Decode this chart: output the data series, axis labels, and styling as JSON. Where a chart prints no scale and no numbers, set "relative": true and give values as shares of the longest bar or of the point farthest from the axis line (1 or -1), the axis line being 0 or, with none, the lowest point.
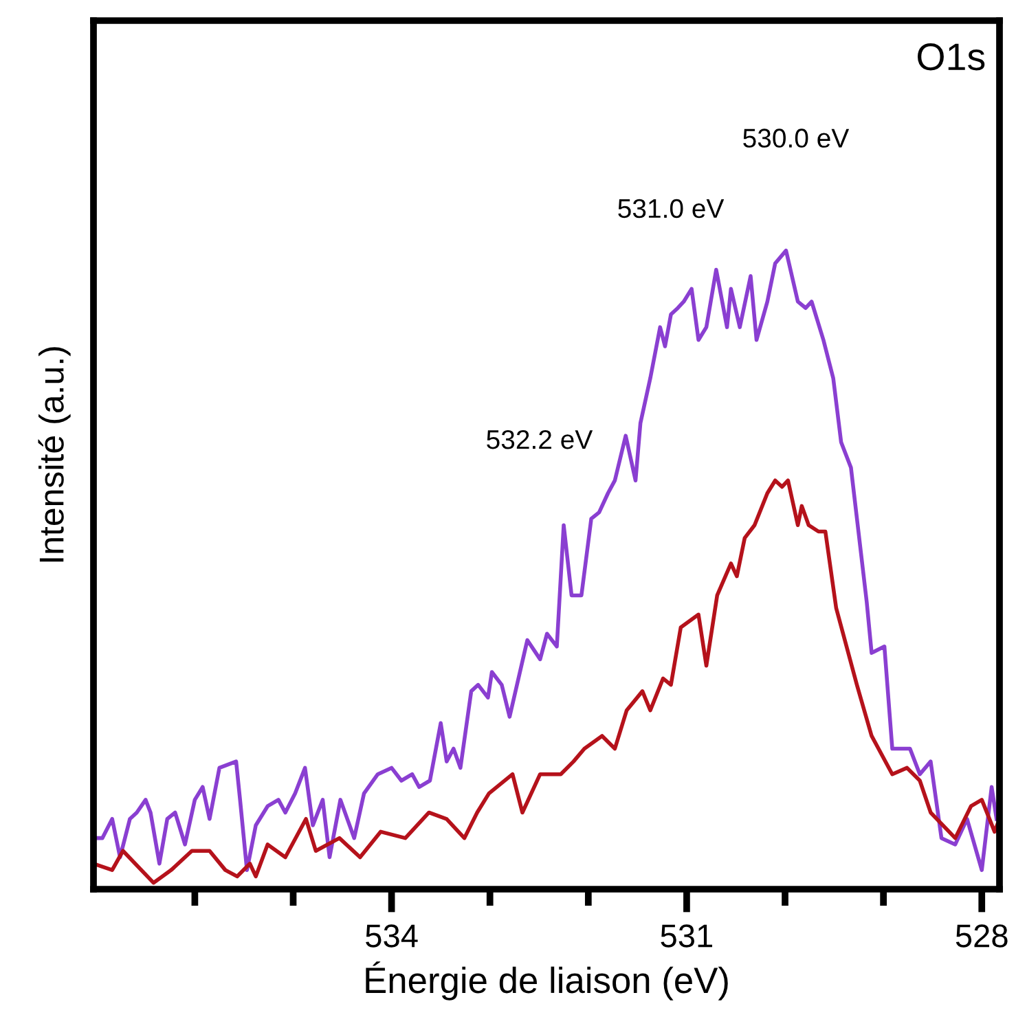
{
  "chart_data": {
    "type": "line",
    "relative": true,
    "xlabel": "Énergie de liaison (eV)",
    "ylabel": "Intensité (a.u.)",
    "xlim": [
      537.03,
      527.82
    ],
    "xticks": [
      {
        "value": 536,
        "label": null
      },
      {
        "value": 535,
        "label": null
      },
      534,
      {
        "value": 533,
        "label": null
      },
      {
        "value": 532,
        "label": null
      },
      531,
      {
        "value": 530,
        "label": null
      },
      {
        "value": 529,
        "label": null
      },
      528
    ],
    "grid": false,
    "legend": false,
    "marker": "none",
    "line_style": "solid",
    "annotations": [
      "O1s",
      "530.0 eV",
      "531.0 eV",
      "532.2 eV"
    ],
    "series": [
      {
        "color": "#8a3fd1",
        "x": [
          537.03,
          536.94,
          536.84,
          536.76,
          536.66,
          536.59,
          536.5,
          536.45,
          536.36,
          536.28,
          536.2,
          536.1,
          536.0,
          535.92,
          535.85,
          535.75,
          535.58,
          535.54,
          535.47,
          535.38,
          535.26,
          535.15,
          535.08,
          534.98,
          534.88,
          534.8,
          534.7,
          534.63,
          534.52,
          534.38,
          534.28,
          534.14,
          534.0,
          533.9,
          533.79,
          533.72,
          533.61,
          533.5,
          533.44,
          533.37,
          533.3,
          533.19,
          533.12,
          533.02,
          532.98,
          532.88,
          532.8,
          532.62,
          532.49,
          532.42,
          532.32,
          532.25,
          532.17,
          532.07,
          531.97,
          531.89,
          531.8,
          531.73,
          531.62,
          531.52,
          531.47,
          531.37,
          531.27,
          531.22,
          531.16,
          531.09,
          531.03,
          530.95,
          530.88,
          530.8,
          530.7,
          530.59,
          530.55,
          530.46,
          530.35,
          530.29,
          530.18,
          530.1,
          529.99,
          529.87,
          529.79,
          529.73,
          529.61,
          529.51,
          529.43,
          529.33,
          529.17,
          529.12,
          528.99,
          528.91,
          528.73,
          528.63,
          528.52,
          528.41,
          528.27,
          528.15,
          528.0,
          527.9,
          527.85
        ],
        "values": [
          0.08,
          0.08,
          0.11,
          0.05,
          0.11,
          0.12,
          0.14,
          0.12,
          0.04,
          0.11,
          0.12,
          0.07,
          0.14,
          0.16,
          0.11,
          0.19,
          0.2,
          0.14,
          0.03,
          0.1,
          0.13,
          0.14,
          0.12,
          0.15,
          0.19,
          0.1,
          0.14,
          0.05,
          0.14,
          0.08,
          0.15,
          0.18,
          0.19,
          0.17,
          0.18,
          0.16,
          0.17,
          0.26,
          0.2,
          0.22,
          0.19,
          0.31,
          0.32,
          0.3,
          0.34,
          0.32,
          0.27,
          0.39,
          0.36,
          0.4,
          0.38,
          0.57,
          0.46,
          0.46,
          0.58,
          0.59,
          0.62,
          0.64,
          0.71,
          0.64,
          0.73,
          0.8,
          0.88,
          0.85,
          0.9,
          0.91,
          0.92,
          0.94,
          0.86,
          0.88,
          0.97,
          0.88,
          0.94,
          0.88,
          0.96,
          0.86,
          0.92,
          0.98,
          1.0,
          0.92,
          0.91,
          0.92,
          0.86,
          0.8,
          0.7,
          0.66,
          0.45,
          0.37,
          0.38,
          0.22,
          0.22,
          0.18,
          0.2,
          0.08,
          0.07,
          0.11,
          0.03,
          0.16,
          0.11
        ]
      },
      {
        "color": "#b5121b",
        "x": [
          537.03,
          536.84,
          536.73,
          536.42,
          536.24,
          536.03,
          535.85,
          535.69,
          535.57,
          535.44,
          535.38,
          535.26,
          535.08,
          534.87,
          534.77,
          534.53,
          534.32,
          534.11,
          533.86,
          533.62,
          533.44,
          533.26,
          533.13,
          533.01,
          532.77,
          532.67,
          532.49,
          532.28,
          532.15,
          532.04,
          531.86,
          531.73,
          531.61,
          531.45,
          531.37,
          531.24,
          531.16,
          531.06,
          530.88,
          530.8,
          530.69,
          530.55,
          530.49,
          530.41,
          530.31,
          530.18,
          530.1,
          530.03,
          529.97,
          529.87,
          529.83,
          529.76,
          529.66,
          529.59,
          529.48,
          529.27,
          529.12,
          528.91,
          528.76,
          528.63,
          528.52,
          528.27,
          528.11,
          528.0,
          527.87,
          527.82
        ],
        "values": [
          0.04,
          0.03,
          0.06,
          0.01,
          0.03,
          0.06,
          0.06,
          0.03,
          0.02,
          0.04,
          0.02,
          0.07,
          0.05,
          0.11,
          0.06,
          0.08,
          0.05,
          0.09,
          0.08,
          0.12,
          0.11,
          0.08,
          0.12,
          0.15,
          0.18,
          0.12,
          0.18,
          0.18,
          0.2,
          0.22,
          0.24,
          0.22,
          0.28,
          0.31,
          0.28,
          0.33,
          0.32,
          0.41,
          0.43,
          0.35,
          0.46,
          0.51,
          0.49,
          0.55,
          0.57,
          0.62,
          0.64,
          0.63,
          0.64,
          0.57,
          0.6,
          0.57,
          0.56,
          0.56,
          0.44,
          0.32,
          0.24,
          0.18,
          0.19,
          0.17,
          0.12,
          0.08,
          0.13,
          0.14,
          0.09,
          0.11
        ]
      }
    ]
  }
}
